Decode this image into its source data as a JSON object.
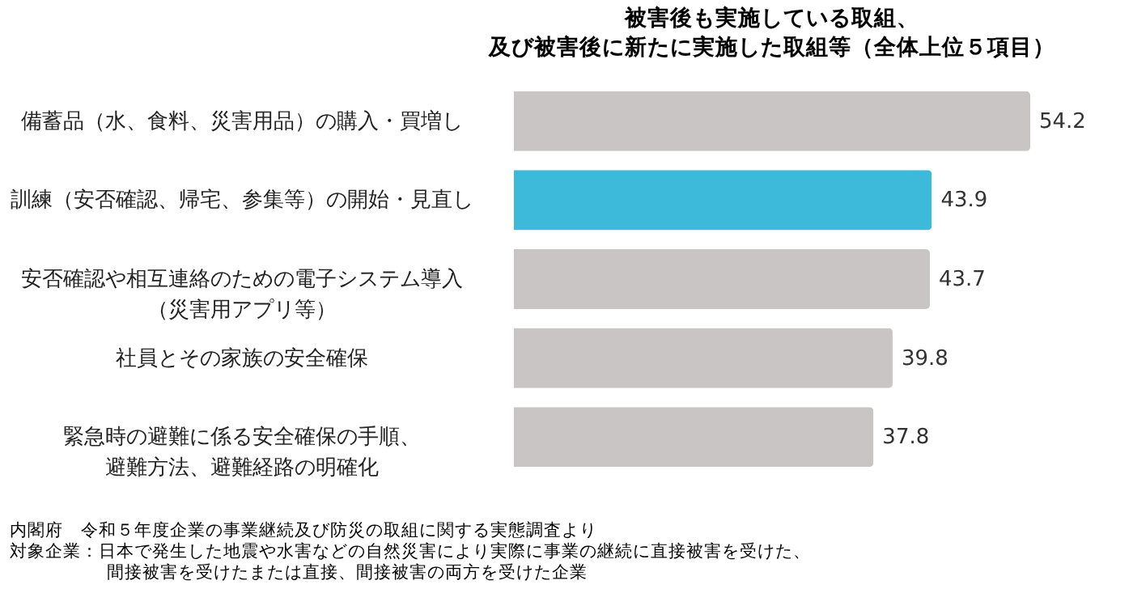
{
  "chart_data": {
    "type": "bar",
    "orientation": "horizontal",
    "title": "被害後も実施している取組、及び被害後に新たに実施した取組等（全体上位５項目）",
    "categories": [
      "備蓄品（水、食料、災害用品）の購入・買増し",
      "訓練（安否確認、帰宅、参集等）の開始・見直し",
      "安否確認や相互連絡のための電子システム導入（災害用アプリ等）",
      "社員とその家族の安全確保",
      "緊急時の避難に係る安全確保の手順、避難方法、避難経路の明確化"
    ],
    "values": [
      54.2,
      43.9,
      43.7,
      39.8,
      37.8
    ],
    "colors": [
      "#c9c5c5",
      "#3db9d9",
      "#c9c5c5",
      "#c9c5c5",
      "#c9c5c5"
    ],
    "data_labels": true,
    "annotations": [
      "内閣府　令和５年度企業の事業継続及び防災の取組に関する実態調査より",
      "対象企業：日本で発生した地震や水害などの自然災害により実際に事業の継続に直接被害を受けた、間接被害を受けたまたは直接、間接被害の両方を受けた企業"
    ]
  }
}
